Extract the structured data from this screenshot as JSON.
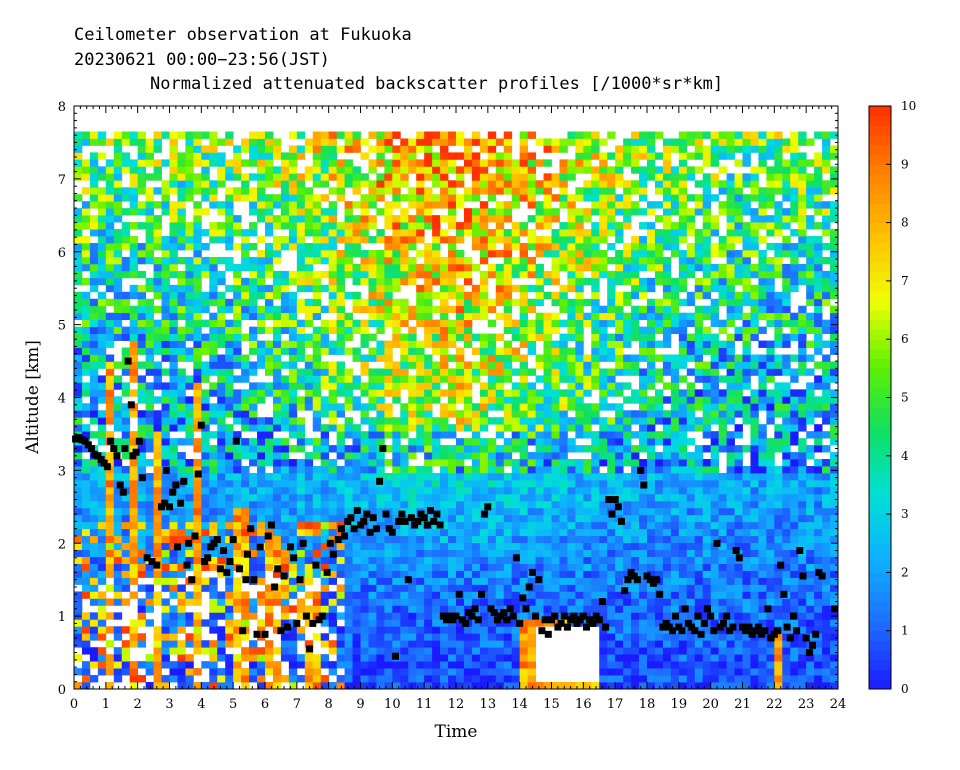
{
  "chart_data": {
    "type": "heatmap",
    "title_line1": "Ceilometer observation at Fukuoka",
    "title_line2": "20230621  00:00−23:56(JST)",
    "title_line3": "Normalized attenuated backscatter profiles [/1000*sr*km]",
    "xlabel": "Time",
    "ylabel": "Altitude [km]",
    "xlim": [
      0,
      24
    ],
    "ylim": [
      0,
      8
    ],
    "x_ticks": [
      "0",
      "1",
      "2",
      "3",
      "4",
      "5",
      "6",
      "7",
      "8",
      "9",
      "10",
      "11",
      "12",
      "13",
      "14",
      "15",
      "16",
      "17",
      "18",
      "19",
      "20",
      "21",
      "22",
      "23",
      "24"
    ],
    "y_ticks": [
      "0",
      "1",
      "2",
      "3",
      "4",
      "5",
      "6",
      "7",
      "8"
    ],
    "data_top_altitude_km": 7.65,
    "colorbar": {
      "min": 0,
      "max": 10,
      "ticks": [
        "0",
        "1",
        "2",
        "3",
        "4",
        "5",
        "6",
        "7",
        "8",
        "9",
        "10"
      ],
      "colors": [
        "#1a1aff",
        "#1e6cff",
        "#0fb0ff",
        "#00e0d8",
        "#10e060",
        "#60f000",
        "#f0ff00",
        "#ffc000",
        "#ff8000",
        "#ff3000"
      ]
    },
    "colors": {
      "grid": "#000000",
      "marker": "#000000",
      "background": "#ffffff"
    },
    "cloud_base_points": [
      [
        0.05,
        3.43
      ],
      [
        0.15,
        3.45
      ],
      [
        0.25,
        3.42
      ],
      [
        0.35,
        3.4
      ],
      [
        0.45,
        3.35
      ],
      [
        0.55,
        3.3
      ],
      [
        0.65,
        3.22
      ],
      [
        0.75,
        3.2
      ],
      [
        0.85,
        3.15
      ],
      [
        0.95,
        3.1
      ],
      [
        1.05,
        3.05
      ],
      [
        1.15,
        3.4
      ],
      [
        1.25,
        3.3
      ],
      [
        1.35,
        3.2
      ],
      [
        1.45,
        2.8
      ],
      [
        1.55,
        2.7
      ],
      [
        1.6,
        3.3
      ],
      [
        1.7,
        4.5
      ],
      [
        1.8,
        3.9
      ],
      [
        1.85,
        3.2
      ],
      [
        1.95,
        3.25
      ],
      [
        2.05,
        3.4
      ],
      [
        2.15,
        2.9
      ],
      [
        2.3,
        1.8
      ],
      [
        2.45,
        1.75
      ],
      [
        2.6,
        1.7
      ],
      [
        2.75,
        2.5
      ],
      [
        2.85,
        2.55
      ],
      [
        2.9,
        3.0
      ],
      [
        3.0,
        2.5
      ],
      [
        3.1,
        2.7
      ],
      [
        3.2,
        2.8
      ],
      [
        3.25,
        1.95
      ],
      [
        3.35,
        2.55
      ],
      [
        3.45,
        2.85
      ],
      [
        3.55,
        1.7
      ],
      [
        3.6,
        2.0
      ],
      [
        3.7,
        1.5
      ],
      [
        3.8,
        2.1
      ],
      [
        3.9,
        2.95
      ],
      [
        4.0,
        3.62
      ],
      [
        4.1,
        1.75
      ],
      [
        4.2,
        1.8
      ],
      [
        4.3,
        1.95
      ],
      [
        4.4,
        2.0
      ],
      [
        4.5,
        2.05
      ],
      [
        4.6,
        1.65
      ],
      [
        4.7,
        1.9
      ],
      [
        4.8,
        1.6
      ],
      [
        4.9,
        1.75
      ],
      [
        5.0,
        2.05
      ],
      [
        5.1,
        3.4
      ],
      [
        5.2,
        1.65
      ],
      [
        5.3,
        0.8
      ],
      [
        5.4,
        1.5
      ],
      [
        5.45,
        1.85
      ],
      [
        5.55,
        2.2
      ],
      [
        5.65,
        1.5
      ],
      [
        5.75,
        0.75
      ],
      [
        5.85,
        1.95
      ],
      [
        6.0,
        0.75
      ],
      [
        6.1,
        2.1
      ],
      [
        6.2,
        2.25
      ],
      [
        6.3,
        1.4
      ],
      [
        6.4,
        1.65
      ],
      [
        6.5,
        0.8
      ],
      [
        6.6,
        1.55
      ],
      [
        6.7,
        0.85
      ],
      [
        6.8,
        1.95
      ],
      [
        6.9,
        1.8
      ],
      [
        7.0,
        0.9
      ],
      [
        7.1,
        1.5
      ],
      [
        7.2,
        2.0
      ],
      [
        7.3,
        1.0
      ],
      [
        7.4,
        0.55
      ],
      [
        7.5,
        0.9
      ],
      [
        7.6,
        1.7
      ],
      [
        7.7,
        0.95
      ],
      [
        7.8,
        1.0
      ],
      [
        7.95,
        1.6
      ],
      [
        8.05,
        2.0
      ],
      [
        8.15,
        1.85
      ],
      [
        8.3,
        2.05
      ],
      [
        8.4,
        2.2
      ],
      [
        8.5,
        2.1
      ],
      [
        8.6,
        2.3
      ],
      [
        8.7,
        2.35
      ],
      [
        8.8,
        2.2
      ],
      [
        8.9,
        2.45
      ],
      [
        9.0,
        2.25
      ],
      [
        9.1,
        2.3
      ],
      [
        9.2,
        2.4
      ],
      [
        9.3,
        2.15
      ],
      [
        9.4,
        2.35
      ],
      [
        9.5,
        2.2
      ],
      [
        9.6,
        2.85
      ],
      [
        9.7,
        3.3
      ],
      [
        9.8,
        2.4
      ],
      [
        9.9,
        2.2
      ],
      [
        10.0,
        2.15
      ],
      [
        10.1,
        0.45
      ],
      [
        10.2,
        2.3
      ],
      [
        10.3,
        2.4
      ],
      [
        10.4,
        2.3
      ],
      [
        10.5,
        1.5
      ],
      [
        10.6,
        2.35
      ],
      [
        10.7,
        2.25
      ],
      [
        10.8,
        2.3
      ],
      [
        10.9,
        2.4
      ],
      [
        11.0,
        2.35
      ],
      [
        11.1,
        2.25
      ],
      [
        11.2,
        2.45
      ],
      [
        11.3,
        2.3
      ],
      [
        11.4,
        2.4
      ],
      [
        11.5,
        2.25
      ],
      [
        11.6,
        1.0
      ],
      [
        11.7,
        0.95
      ],
      [
        11.8,
        1.0
      ],
      [
        11.9,
        0.95
      ],
      [
        12.0,
        1.0
      ],
      [
        12.1,
        1.3
      ],
      [
        12.2,
        0.95
      ],
      [
        12.3,
        0.9
      ],
      [
        12.4,
        1.05
      ],
      [
        12.5,
        1.0
      ],
      [
        12.6,
        1.1
      ],
      [
        12.7,
        0.95
      ],
      [
        12.8,
        1.3
      ],
      [
        12.9,
        2.4
      ],
      [
        13.0,
        2.5
      ],
      [
        13.1,
        1.1
      ],
      [
        13.2,
        1.05
      ],
      [
        13.3,
        0.95
      ],
      [
        13.4,
        1.0
      ],
      [
        13.5,
        1.05
      ],
      [
        13.6,
        0.95
      ],
      [
        13.7,
        1.1
      ],
      [
        13.8,
        1.0
      ],
      [
        13.9,
        1.8
      ],
      [
        14.0,
        0.9
      ],
      [
        14.1,
        1.25
      ],
      [
        14.2,
        1.1
      ],
      [
        14.3,
        1.4
      ],
      [
        14.4,
        1.6
      ],
      [
        14.5,
        1.0
      ],
      [
        14.6,
        1.5
      ],
      [
        14.7,
        0.8
      ],
      [
        14.8,
        0.95
      ],
      [
        14.9,
        0.75
      ],
      [
        15.0,
        0.95
      ],
      [
        15.1,
        1.0
      ],
      [
        15.2,
        0.85
      ],
      [
        15.3,
        0.9
      ],
      [
        15.4,
        1.0
      ],
      [
        15.5,
        0.85
      ],
      [
        15.6,
        0.95
      ],
      [
        15.7,
        1.0
      ],
      [
        15.8,
        0.9
      ],
      [
        15.9,
        0.95
      ],
      [
        16.0,
        1.0
      ],
      [
        16.1,
        0.85
      ],
      [
        16.2,
        0.95
      ],
      [
        16.3,
        0.9
      ],
      [
        16.4,
        1.0
      ],
      [
        16.5,
        0.95
      ],
      [
        16.6,
        1.2
      ],
      [
        16.7,
        0.85
      ],
      [
        16.8,
        2.6
      ],
      [
        16.9,
        2.4
      ],
      [
        17.0,
        2.6
      ],
      [
        17.1,
        2.5
      ],
      [
        17.2,
        2.3
      ],
      [
        17.3,
        1.35
      ],
      [
        17.4,
        1.5
      ],
      [
        17.5,
        1.6
      ],
      [
        17.6,
        1.55
      ],
      [
        17.7,
        1.5
      ],
      [
        17.8,
        3.0
      ],
      [
        17.9,
        2.8
      ],
      [
        18.0,
        1.55
      ],
      [
        18.1,
        1.5
      ],
      [
        18.2,
        1.45
      ],
      [
        18.3,
        1.5
      ],
      [
        18.4,
        1.3
      ],
      [
        18.5,
        0.85
      ],
      [
        18.6,
        0.9
      ],
      [
        18.7,
        0.85
      ],
      [
        18.8,
        0.8
      ],
      [
        18.9,
        1.0
      ],
      [
        19.0,
        0.85
      ],
      [
        19.1,
        0.8
      ],
      [
        19.2,
        1.1
      ],
      [
        19.3,
        0.9
      ],
      [
        19.4,
        0.85
      ],
      [
        19.5,
        0.8
      ],
      [
        19.6,
        1.0
      ],
      [
        19.7,
        0.75
      ],
      [
        19.8,
        0.9
      ],
      [
        19.9,
        1.1
      ],
      [
        20.0,
        1.0
      ],
      [
        20.1,
        0.8
      ],
      [
        20.2,
        2.0
      ],
      [
        20.3,
        0.85
      ],
      [
        20.4,
        0.9
      ],
      [
        20.5,
        1.0
      ],
      [
        20.6,
        0.8
      ],
      [
        20.7,
        0.85
      ],
      [
        20.8,
        1.9
      ],
      [
        20.9,
        1.8
      ],
      [
        21.0,
        0.85
      ],
      [
        21.1,
        0.8
      ],
      [
        21.2,
        0.85
      ],
      [
        21.3,
        0.75
      ],
      [
        21.4,
        0.8
      ],
      [
        21.5,
        0.85
      ],
      [
        21.6,
        0.75
      ],
      [
        21.7,
        0.8
      ],
      [
        21.8,
        1.1
      ],
      [
        21.9,
        0.7
      ],
      [
        22.0,
        0.75
      ],
      [
        22.1,
        0.8
      ],
      [
        22.2,
        1.7
      ],
      [
        22.3,
        1.3
      ],
      [
        22.4,
        0.85
      ],
      [
        22.5,
        0.7
      ],
      [
        22.6,
        1.0
      ],
      [
        22.7,
        0.8
      ],
      [
        22.8,
        1.9
      ],
      [
        22.9,
        1.55
      ],
      [
        23.0,
        0.7
      ],
      [
        23.1,
        0.5
      ],
      [
        23.2,
        0.6
      ],
      [
        23.3,
        0.75
      ],
      [
        23.4,
        1.6
      ],
      [
        23.5,
        1.55
      ],
      [
        23.9,
        1.1
      ]
    ]
  }
}
